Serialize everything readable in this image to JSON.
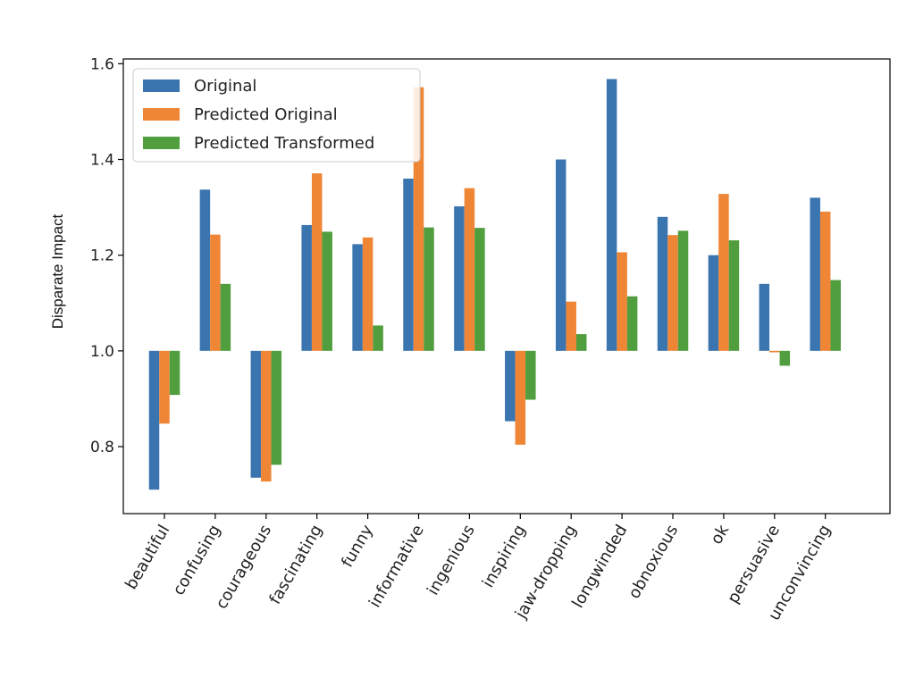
{
  "chart_data": {
    "type": "bar",
    "title": "",
    "xlabel": "",
    "ylabel": "Disparate Impact",
    "baseline": 1.0,
    "ylim": [
      0.66,
      1.61
    ],
    "yticks": [
      "0.8",
      "1.0",
      "1.2",
      "1.4",
      "1.6"
    ],
    "legend_position": "top-left",
    "grid": false,
    "categories": [
      "beautiful",
      "confusing",
      "courageous",
      "fascinating",
      "funny",
      "informative",
      "ingenious",
      "inspiring",
      "jaw-dropping",
      "longwinded",
      "obnoxious",
      "ok",
      "persuasive",
      "unconvincing"
    ],
    "series": [
      {
        "name": "Original",
        "color": "#3b75af",
        "values": [
          0.71,
          1.337,
          0.735,
          1.263,
          1.223,
          1.36,
          1.302,
          0.853,
          1.4,
          1.568,
          1.28,
          1.2,
          1.14,
          1.32
        ]
      },
      {
        "name": "Predicted Original",
        "color": "#ef8636",
        "values": [
          0.848,
          1.243,
          0.727,
          1.371,
          1.237,
          1.551,
          1.34,
          0.804,
          1.103,
          1.206,
          1.242,
          1.328,
          0.997,
          1.291
        ]
      },
      {
        "name": "Predicted Transformed",
        "color": "#519e3e",
        "values": [
          0.908,
          1.14,
          0.762,
          1.249,
          1.053,
          1.258,
          1.257,
          0.898,
          1.035,
          1.114,
          1.251,
          1.231,
          0.969,
          1.148
        ]
      }
    ]
  }
}
